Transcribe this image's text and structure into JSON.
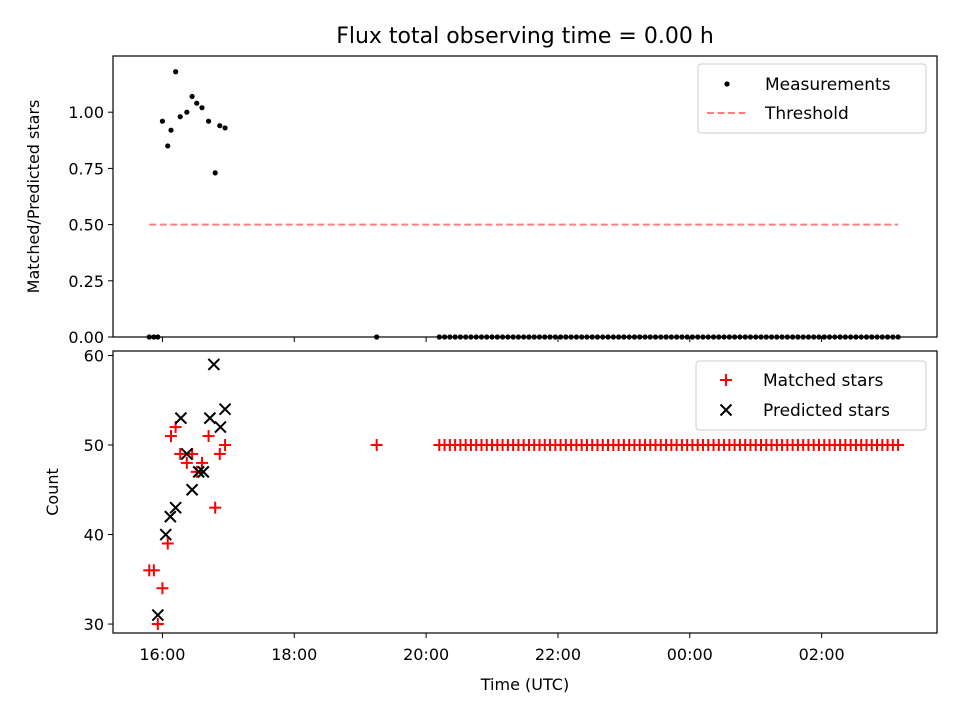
{
  "chart_data": [
    {
      "type": "scatter",
      "title": "Flux total observing time = 0.00 h",
      "ylabel": "Matched/Predicted stars",
      "xlabel": "",
      "xlim_hours": [
        15.25,
        27.75
      ],
      "ylim": [
        0,
        1.25
      ],
      "yticks": [
        0,
        0.25,
        0.5,
        0.75,
        1.0
      ],
      "ytick_labels": [
        "0.00",
        "0.25",
        "0.50",
        "0.75",
        "1.00"
      ],
      "legend_position": "top-right",
      "series": [
        {
          "name": "Measurements",
          "kind": "scatter",
          "color": "#000000",
          "x": [
            15.8,
            15.87,
            15.93,
            16.0,
            16.08,
            16.13,
            16.2,
            16.27,
            16.37,
            16.45,
            16.52,
            16.6,
            16.7,
            16.8,
            16.87,
            16.95,
            19.25,
            20.2,
            20.28,
            20.36,
            20.44,
            20.52,
            20.6,
            20.68,
            20.76,
            20.84,
            20.92,
            21.0,
            21.08,
            21.16,
            21.24,
            21.32,
            21.4,
            21.48,
            21.56,
            21.64,
            21.72,
            21.8,
            21.88,
            21.96,
            22.04,
            22.12,
            22.2,
            22.28,
            22.36,
            22.44,
            22.52,
            22.6,
            22.68,
            22.76,
            22.84,
            22.92,
            23.0,
            23.08,
            23.16,
            23.24,
            23.32,
            23.4,
            23.48,
            23.56,
            23.64,
            23.72,
            23.8,
            23.88,
            23.96,
            24.04,
            24.12,
            24.2,
            24.28,
            24.36,
            24.44,
            24.52,
            24.6,
            24.68,
            24.76,
            24.84,
            24.92,
            25.0,
            25.08,
            25.16,
            25.24,
            25.32,
            25.4,
            25.48,
            25.56,
            25.64,
            25.72,
            25.8,
            25.88,
            25.96,
            26.04,
            26.12,
            26.2,
            26.28,
            26.36,
            26.44,
            26.52,
            26.6,
            26.68,
            26.76,
            26.84,
            26.92,
            27.0,
            27.08,
            27.16
          ],
          "y": [
            0,
            0,
            0,
            0.96,
            0.85,
            0.92,
            1.18,
            0.98,
            1.0,
            1.07,
            1.04,
            1.02,
            0.96,
            0.73,
            0.94,
            0.93,
            0,
            0,
            0,
            0,
            0,
            0,
            0,
            0,
            0,
            0,
            0,
            0,
            0,
            0,
            0,
            0,
            0,
            0,
            0,
            0,
            0,
            0,
            0,
            0,
            0,
            0,
            0,
            0,
            0,
            0,
            0,
            0,
            0,
            0,
            0,
            0,
            0,
            0,
            0,
            0,
            0,
            0,
            0,
            0,
            0,
            0,
            0,
            0,
            0,
            0,
            0,
            0,
            0,
            0,
            0,
            0,
            0,
            0,
            0,
            0,
            0,
            0,
            0,
            0,
            0,
            0,
            0,
            0,
            0,
            0,
            0,
            0,
            0,
            0,
            0,
            0,
            0,
            0,
            0,
            0,
            0,
            0,
            0,
            0,
            0,
            0,
            0,
            0,
            0
          ]
        },
        {
          "name": "Threshold",
          "kind": "dashed-line",
          "color": "#ff7f7f",
          "x": [
            15.8,
            27.16
          ],
          "y": [
            0.5,
            0.5
          ]
        }
      ]
    },
    {
      "type": "scatter",
      "title": "",
      "ylabel": "Count",
      "xlabel": "Time (UTC)",
      "xlim_hours": [
        15.25,
        27.75
      ],
      "ylim": [
        29,
        60.5
      ],
      "yticks": [
        30,
        40,
        50,
        60
      ],
      "ytick_labels": [
        "30",
        "40",
        "50",
        "60"
      ],
      "xticks_hours": [
        16,
        18,
        20,
        22,
        24,
        26
      ],
      "xtick_labels": [
        "16:00",
        "18:00",
        "20:00",
        "22:00",
        "00:00",
        "02:00"
      ],
      "legend_position": "top-right",
      "series": [
        {
          "name": "Matched stars",
          "marker": "plus",
          "color": "#ff0000",
          "x": [
            15.8,
            15.87,
            15.93,
            16.0,
            16.08,
            16.13,
            16.2,
            16.27,
            16.37,
            16.45,
            16.52,
            16.6,
            16.7,
            16.8,
            16.87,
            16.95,
            19.25,
            20.2,
            20.28,
            20.36,
            20.44,
            20.52,
            20.6,
            20.68,
            20.76,
            20.84,
            20.92,
            21.0,
            21.08,
            21.16,
            21.24,
            21.32,
            21.4,
            21.48,
            21.56,
            21.64,
            21.72,
            21.8,
            21.88,
            21.96,
            22.04,
            22.12,
            22.2,
            22.28,
            22.36,
            22.44,
            22.52,
            22.6,
            22.68,
            22.76,
            22.84,
            22.92,
            23.0,
            23.08,
            23.16,
            23.24,
            23.32,
            23.4,
            23.48,
            23.56,
            23.64,
            23.72,
            23.8,
            23.88,
            23.96,
            24.04,
            24.12,
            24.2,
            24.28,
            24.36,
            24.44,
            24.52,
            24.6,
            24.68,
            24.76,
            24.84,
            24.92,
            25.0,
            25.08,
            25.16,
            25.24,
            25.32,
            25.4,
            25.48,
            25.56,
            25.64,
            25.72,
            25.8,
            25.88,
            25.96,
            26.04,
            26.12,
            26.2,
            26.28,
            26.36,
            26.44,
            26.52,
            26.6,
            26.68,
            26.76,
            26.84,
            26.92,
            27.0,
            27.08,
            27.16
          ],
          "y": [
            36,
            36,
            30,
            34,
            39,
            51,
            52,
            49,
            48,
            49,
            47,
            48,
            51,
            43,
            49,
            50,
            50,
            50,
            50,
            50,
            50,
            50,
            50,
            50,
            50,
            50,
            50,
            50,
            50,
            50,
            50,
            50,
            50,
            50,
            50,
            50,
            50,
            50,
            50,
            50,
            50,
            50,
            50,
            50,
            50,
            50,
            50,
            50,
            50,
            50,
            50,
            50,
            50,
            50,
            50,
            50,
            50,
            50,
            50,
            50,
            50,
            50,
            50,
            50,
            50,
            50,
            50,
            50,
            50,
            50,
            50,
            50,
            50,
            50,
            50,
            50,
            50,
            50,
            50,
            50,
            50,
            50,
            50,
            50,
            50,
            50,
            50,
            50,
            50,
            50,
            50,
            50,
            50,
            50,
            50,
            50,
            50,
            50,
            50,
            50,
            50,
            50,
            50,
            50,
            50
          ]
        },
        {
          "name": "Predicted stars",
          "marker": "x",
          "color": "#000000",
          "x": [
            15.93,
            16.05,
            16.12,
            16.2,
            16.28,
            16.37,
            16.45,
            16.55,
            16.62,
            16.72,
            16.78,
            16.88,
            16.95
          ],
          "y": [
            31,
            40,
            42,
            43,
            53,
            49,
            45,
            47,
            47,
            53,
            59,
            52,
            54
          ]
        }
      ]
    }
  ]
}
